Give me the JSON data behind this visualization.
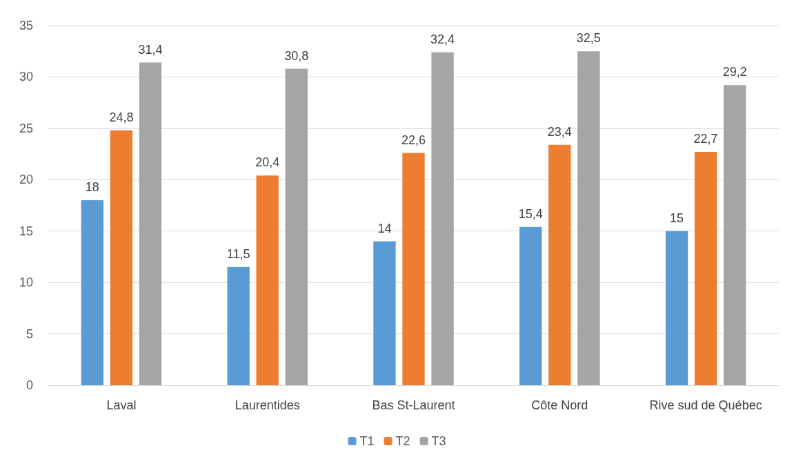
{
  "chart_data": {
    "type": "bar",
    "categories": [
      "Laval",
      "Laurentides",
      "Bas St-Laurent",
      "Côte Nord",
      "Rive sud de Québec"
    ],
    "series": [
      {
        "name": "T1",
        "color": "#5b9bd5",
        "values": [
          18,
          11.5,
          14,
          15.4,
          15
        ],
        "value_labels": [
          "18",
          "11,5",
          "14",
          "15,4",
          "15"
        ]
      },
      {
        "name": "T2",
        "color": "#ed7d31",
        "values": [
          24.8,
          20.4,
          22.6,
          23.4,
          22.7
        ],
        "value_labels": [
          "24,8",
          "20,4",
          "22,6",
          "23,4",
          "22,7"
        ]
      },
      {
        "name": "T3",
        "color": "#a5a5a5",
        "values": [
          31.4,
          30.8,
          32.4,
          32.5,
          29.2
        ],
        "value_labels": [
          "31,4",
          "30,8",
          "32,4",
          "32,5",
          "29,2"
        ]
      }
    ],
    "ylim": [
      0,
      35
    ],
    "yticks": [
      0,
      5,
      10,
      15,
      20,
      25,
      30,
      35
    ],
    "grid": "y",
    "legend": "bottom"
  }
}
